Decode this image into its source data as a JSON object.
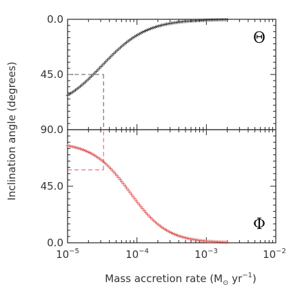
{
  "chart_data": [
    {
      "type": "scatter",
      "panel": "top",
      "panel_label": "Θ",
      "ylabel": "Inclination angle (degrees)",
      "xscale": "log",
      "xlim": [
        1e-05,
        0.01
      ],
      "ylim": [
        90.0,
        0.0
      ],
      "y_ticks": [
        "0.0",
        "45.0",
        "90.0"
      ],
      "marker": "+",
      "marker_color": "#333333",
      "guide_lines": {
        "x": 3.3e-05,
        "y": 45.0,
        "style": "dashed",
        "color": "#555555"
      },
      "x_log_start": -5.0,
      "x_log_end": -2.7,
      "x_log_step": 0.023,
      "curve": {
        "y_low": 75.0,
        "y_high": 0.0,
        "log_x_mid": -4.5,
        "log_x_width": 0.32
      }
    },
    {
      "type": "scatter",
      "panel": "bottom",
      "panel_label": "Φ",
      "xlabel": "Mass accretion rate (M",
      "xlabel_sub": "⊙",
      "xlabel_unit": " yr",
      "xlabel_sup": "−1",
      "xlabel_close": ")",
      "xscale": "log",
      "xlim": [
        1e-05,
        0.01
      ],
      "x_ticks": [
        {
          "base": "10",
          "exp": "−5"
        },
        {
          "base": "10",
          "exp": "−4"
        },
        {
          "base": "10",
          "exp": "−3"
        },
        {
          "base": "10",
          "exp": "−2"
        }
      ],
      "ylim": [
        0.0,
        90.0
      ],
      "y_ticks": [
        "0.0",
        "45.0",
        "90.0"
      ],
      "marker": "+",
      "marker_color": "#e05050",
      "guide_lines": {
        "x": 3.3e-05,
        "y": 58.0,
        "style": "dashed",
        "color": "#e05050"
      },
      "x_log_start": -5.0,
      "x_log_end": -2.7,
      "x_log_step": 0.023,
      "curve": {
        "y_low": 80.0,
        "y_high": 0.0,
        "log_x_mid": -4.1,
        "log_x_width": 0.27
      }
    }
  ]
}
